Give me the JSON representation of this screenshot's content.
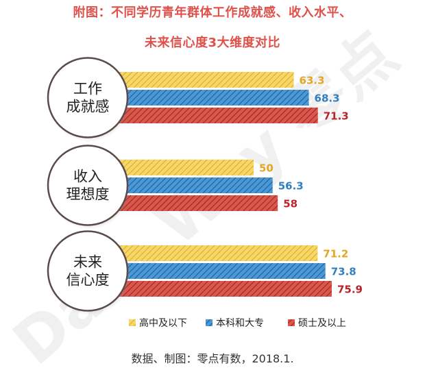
{
  "title_line1": "附图：不同学历青年群体工作成就感、收入水平、",
  "title_line2": "未来信心度3大维度对比",
  "source": "数据、制图：零点有数，2018.1.",
  "watermark": "Data Way 零点",
  "chart_data": {
    "type": "bar",
    "orientation": "horizontal",
    "categories": [
      "工作成就感",
      "收入理想度",
      "未来信心度"
    ],
    "category_labels": [
      [
        "工作",
        "成就感"
      ],
      [
        "收入",
        "理想度"
      ],
      [
        "未来",
        "信心度"
      ]
    ],
    "series": [
      {
        "name": "高中及以下",
        "values": [
          63.3,
          50,
          71.2
        ],
        "color": "#f2c94c",
        "label_color": "#e5a523"
      },
      {
        "name": "本科和大专",
        "values": [
          68.3,
          56.3,
          73.8
        ],
        "color": "#2f7fc1",
        "label_color": "#2f7fc1"
      },
      {
        "name": "硕士及以上",
        "values": [
          71.3,
          58,
          75.9
        ],
        "color": "#c0392b",
        "label_color": "#b8242a"
      }
    ],
    "legend_position": "bottom",
    "grid": false
  }
}
